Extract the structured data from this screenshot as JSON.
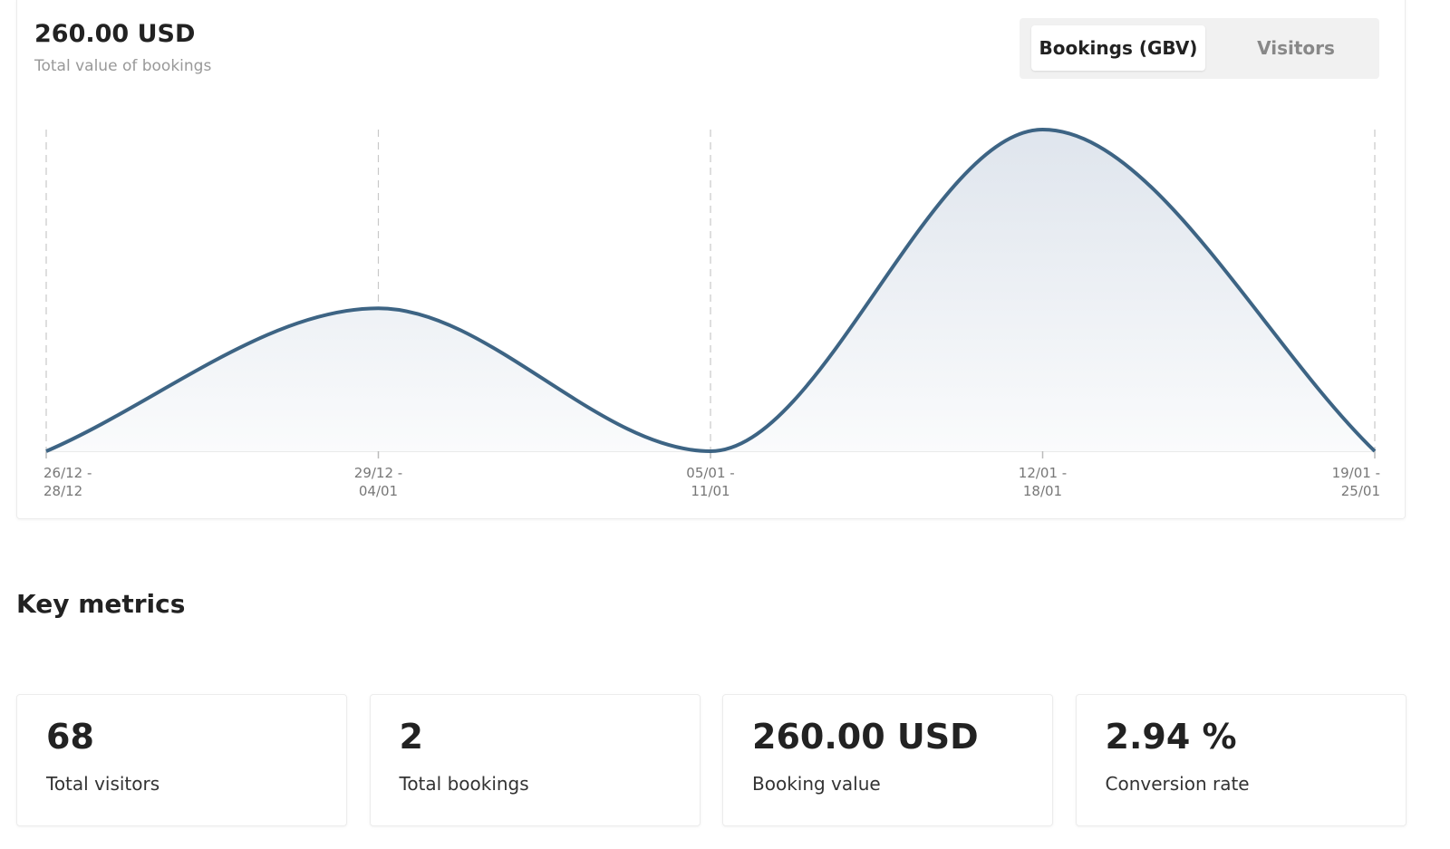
{
  "header": {
    "value": "260.00 USD",
    "subtitle": "Total value of bookings"
  },
  "tabs": [
    "Bookings (GBV)",
    "Visitors"
  ],
  "chart_data": {
    "type": "area",
    "categories": [
      "26/12 - 28/12",
      "29/12 - 04/01",
      "05/01 - 11/01",
      "12/01 - 18/01",
      "19/01 - 25/01"
    ],
    "values": [
      0,
      80,
      0,
      180,
      0
    ],
    "color": "#3d6484",
    "ylim": [
      0,
      180
    ]
  },
  "key_metrics": {
    "title": "Key metrics",
    "items": [
      {
        "value": "68",
        "label": "Total visitors"
      },
      {
        "value": "2",
        "label": "Total bookings"
      },
      {
        "value": "260.00 USD",
        "label": "Booking value"
      },
      {
        "value": "2.94 %",
        "label": "Conversion rate"
      }
    ]
  }
}
